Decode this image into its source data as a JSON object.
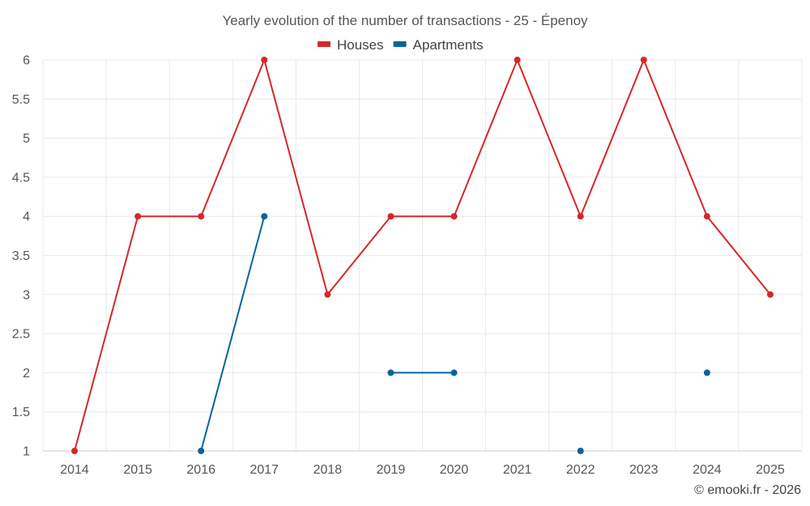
{
  "chart_data": {
    "type": "line",
    "title": "Yearly evolution of the number of transactions - 25 - Épenoy",
    "categories": [
      "2014",
      "2015",
      "2016",
      "2017",
      "2018",
      "2019",
      "2020",
      "2021",
      "2022",
      "2023",
      "2024",
      "2025"
    ],
    "series": [
      {
        "name": "Houses",
        "color": "#d62728",
        "values": [
          1,
          4,
          4,
          6,
          3,
          4,
          4,
          6,
          4,
          6,
          4,
          3
        ]
      },
      {
        "name": "Apartments",
        "color": "#06659c",
        "values": [
          null,
          null,
          1,
          4,
          null,
          2,
          2,
          null,
          1,
          null,
          2,
          null
        ]
      }
    ],
    "ylim": [
      1,
      6
    ],
    "yticks": [
      "1",
      "1.5",
      "2",
      "2.5",
      "3",
      "3.5",
      "4",
      "4.5",
      "5",
      "5.5",
      "6"
    ],
    "xlabel": "",
    "ylabel": "",
    "grid": true,
    "legend_position": "top-center"
  },
  "credit": "© emooki.fr - 2026"
}
